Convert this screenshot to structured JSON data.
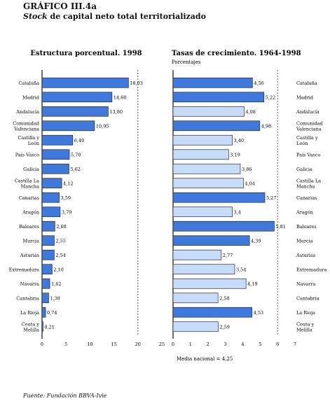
{
  "header": {
    "title": "GRÁFICO III.4a",
    "subtitle_italic": "Stock",
    "subtitle_rest": " de capital neto total territorializado"
  },
  "footer": {
    "source": "Fuente: Fundación BBVA-Ivie"
  },
  "colors": {
    "dark_bar": "#3f79dc",
    "light_bar": "#c7dcf9",
    "bar_stroke": "#2a2a2a"
  },
  "chart_data": [
    {
      "type": "bar",
      "orientation": "horizontal",
      "title": "Estructura porcentual. 1998",
      "xlim": [
        0,
        25
      ],
      "xticks": [
        0,
        5,
        10,
        15,
        20,
        25
      ],
      "reference_line": 20,
      "categories": [
        "Cataluña",
        "Madrid",
        "Andalucía",
        "Comunidad Valenciana",
        "Castilla y León",
        "País Vasco",
        "Galicia",
        "Castilla La Mancha",
        "Canarias",
        "Aragón",
        "Baleares",
        "Murcia",
        "Asturias",
        "Extremadura",
        "Navarra",
        "Cantabria",
        "La Rioja",
        "Ceuta y Melilla"
      ],
      "category_labels": [
        [
          "Cataluña"
        ],
        [
          "Madrid"
        ],
        [
          "Andalucía"
        ],
        [
          "Comunidad",
          "Valenciana"
        ],
        [
          "Castilla y",
          "León"
        ],
        [
          "País Vasco"
        ],
        [
          "Galicia"
        ],
        [
          "Castilla La",
          "Mancha"
        ],
        [
          "Canarias"
        ],
        [
          "Aragón"
        ],
        [
          "Baleares"
        ],
        [
          "Murcia"
        ],
        [
          "Asturias"
        ],
        [
          "Extremadura"
        ],
        [
          "Navarra"
        ],
        [
          "Cantabria"
        ],
        [
          "La Rioja"
        ],
        [
          "Ceuta y",
          "Melilla"
        ]
      ],
      "values": [
        18.03,
        14.6,
        13.8,
        10.95,
        6.4,
        5.7,
        5.62,
        4.12,
        3.59,
        3.79,
        2.68,
        2.55,
        2.54,
        2.1,
        1.62,
        1.38,
        0.74,
        0.21
      ],
      "value_labels": [
        "18,03",
        "14,60",
        "13,80",
        "10,95",
        "6,40",
        "5,70",
        "5,62",
        "4,12",
        "3,59",
        "3,79",
        "2,68",
        "2,55",
        "2,54",
        "2,10",
        "1,62",
        "1,38",
        "0,74",
        "0,21"
      ]
    },
    {
      "type": "bar",
      "orientation": "horizontal",
      "title": "Tasas de crecimiento. 1964-1998",
      "subtitle": "Porcentajes",
      "xlim": [
        0,
        7
      ],
      "xticks": [
        0,
        1,
        2,
        3,
        4,
        5,
        6,
        7
      ],
      "reference_line": 6,
      "reference_value": 4.25,
      "reference_label": "Media nacional = 4,25",
      "categories": [
        "Cataluña",
        "Madrid",
        "Andalucía",
        "Comunidad Valenciana",
        "Castilla y León",
        "País Vasco",
        "Galicia",
        "Castilla La Mancha",
        "Canarias",
        "Aragón",
        "Baleares",
        "Murcia",
        "Asturias",
        "Extremadura",
        "Navarra",
        "Cantabria",
        "La Rioja",
        "Ceuta y Melilla"
      ],
      "category_labels": [
        [
          "Cataluña"
        ],
        [
          "Madrid"
        ],
        [
          "Andalucía"
        ],
        [
          "Comunidad",
          "Valenciana"
        ],
        [
          "Castilla y",
          "León"
        ],
        [
          "País Vasco"
        ],
        [
          "Galicia"
        ],
        [
          "Castilla La",
          "Mancha"
        ],
        [
          "Canarias"
        ],
        [
          "Aragón"
        ],
        [
          "Baleares"
        ],
        [
          "Murcia"
        ],
        [
          "Asturias"
        ],
        [
          "Extremadura"
        ],
        [
          "Navarra"
        ],
        [
          "Cantabria"
        ],
        [
          "La Rioja"
        ],
        [
          "Ceuta y",
          "Melilla"
        ]
      ],
      "values": [
        4.56,
        5.22,
        4.08,
        4.98,
        3.4,
        3.19,
        3.86,
        4.04,
        5.27,
        3.4,
        5.81,
        4.39,
        2.77,
        3.54,
        4.19,
        2.58,
        4.53,
        2.59
      ],
      "value_labels": [
        "4,56",
        "5,22",
        "4,08",
        "4,98",
        "3,40",
        "3,19",
        "3,86",
        "4,04",
        "5,27",
        "3,4",
        "5,81",
        "4,39",
        "2,77",
        "3,54",
        "4,19",
        "2,58",
        "4,53",
        "2,59"
      ]
    }
  ]
}
